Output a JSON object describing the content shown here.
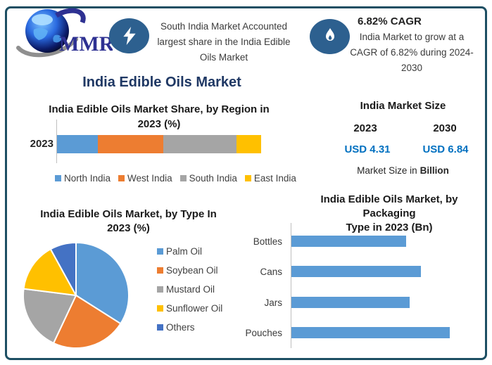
{
  "brand": {
    "name": "MMR"
  },
  "callouts": [
    {
      "icon": "lightning-icon",
      "text": "South India Market Accounted largest share in the India Edible Oils Market"
    },
    {
      "icon": "flame-icon",
      "heading": "6.82% CAGR",
      "text": "India Market to grow at a CAGR of 6.82% during 2024-2030"
    }
  ],
  "main_title": "India Edible Oils Market",
  "market_size": {
    "title": "India Market Size",
    "year_start": "2023",
    "year_end": "2030",
    "value_start": "USD 4.31",
    "value_end": "USD 6.84",
    "footnote_prefix": "Market Size in",
    "footnote_bold": "Billion",
    "value_color": "#0070c0"
  },
  "colors": {
    "frame_border": "#1d4f63",
    "icon_circle": "#2d608f",
    "navy_title": "#1f3864",
    "bar_blue": "#5b9bd5"
  },
  "chart_data": [
    {
      "type": "bar",
      "subtype": "stacked-horizontal",
      "title": "India Edible Oils Market Share, by Region in 2023 (%)",
      "title_line1": "India Edible Oils Market Share, by Region in",
      "title_line2": "2023 (%)",
      "categories": [
        "2023"
      ],
      "series": [
        {
          "name": "North India",
          "color": "#5b9bd5",
          "values": [
            20
          ]
        },
        {
          "name": "West India",
          "color": "#ed7d31",
          "values": [
            32
          ]
        },
        {
          "name": "South India",
          "color": "#a5a5a5",
          "values": [
            36
          ]
        },
        {
          "name": "East India",
          "color": "#ffc000",
          "values": [
            12
          ]
        }
      ],
      "xlim": [
        0,
        100
      ],
      "legend_position": "bottom",
      "grid": false
    },
    {
      "type": "pie",
      "title": "India Edible Oils Market, by Type In 2023 (%)",
      "title_line1": "India Edible Oils Market, by Type In",
      "title_line2": "2023 (%)",
      "labels": [
        "Palm Oil",
        "Soybean Oil",
        "Mustard Oil",
        "Sunflower Oil",
        "Others"
      ],
      "values": [
        34,
        23,
        20,
        15,
        8
      ],
      "colors": [
        "#5b9bd5",
        "#ed7d31",
        "#a5a5a5",
        "#ffc000",
        "#4472c4"
      ],
      "legend_position": "right",
      "start_angle_deg": 0,
      "direction": "clockwise"
    },
    {
      "type": "bar",
      "subtype": "horizontal",
      "title": "India Edible Oils Market, by Packaging Type in 2023 (Bn)",
      "title_line1": "India Edible Oils Market, by Packaging",
      "title_line2": "Type in 2023 (Bn)",
      "categories": [
        "Bottles",
        "Cans",
        "Jars",
        "Pouches"
      ],
      "values": [
        0.95,
        1.07,
        0.98,
        1.31
      ],
      "color": "#5b9bd5",
      "xlim": [
        0,
        1.5
      ],
      "grid": false,
      "note": "values estimated from bar lengths; no value labels shown in chart"
    }
  ]
}
